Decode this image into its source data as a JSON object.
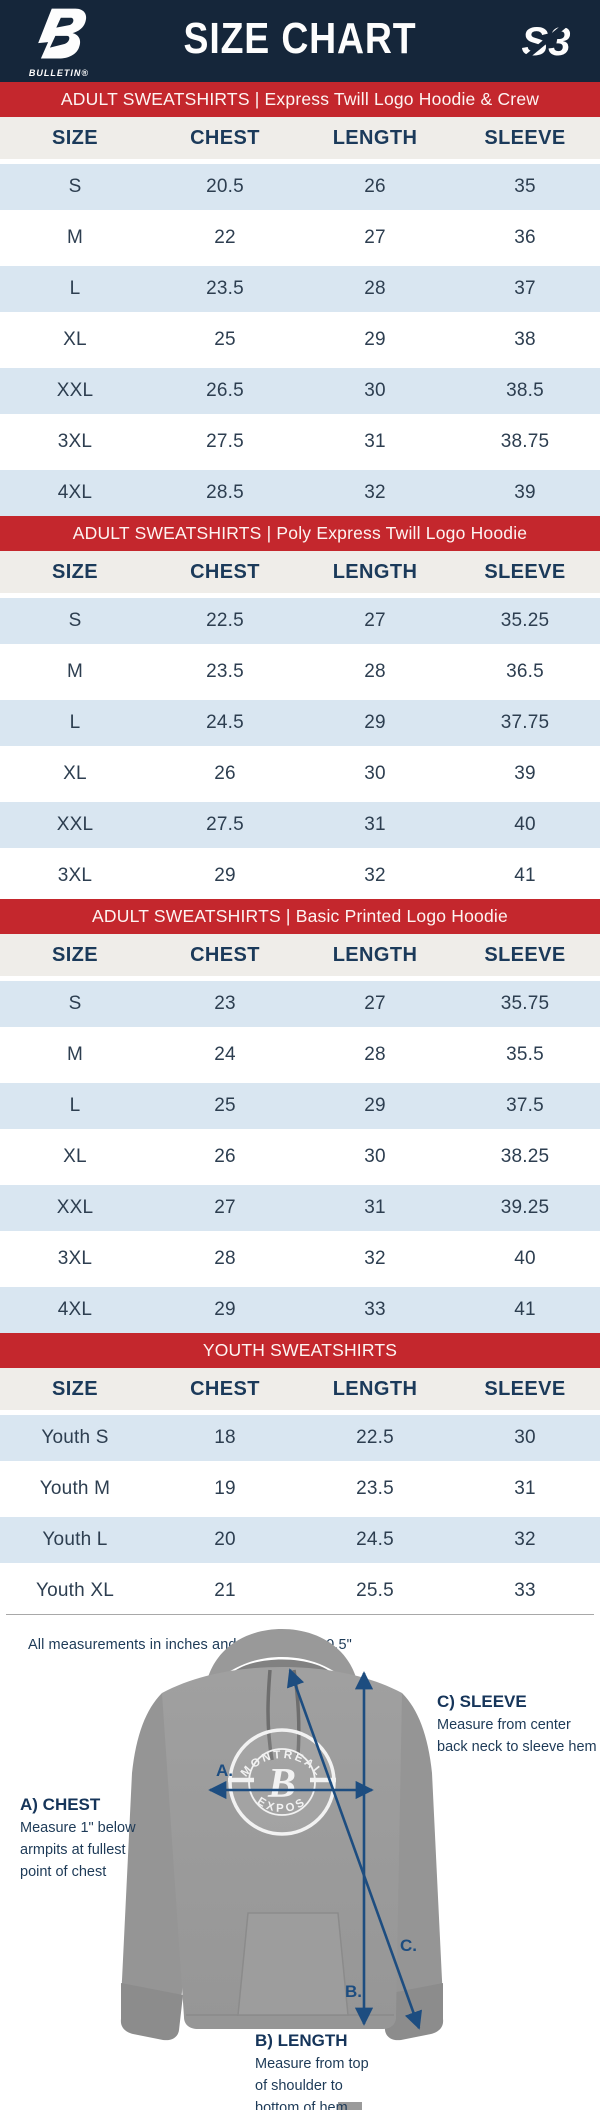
{
  "header": {
    "title": "SIZE CHART",
    "left_logo_text": "BULLETIN®",
    "right_logo_text": "S3"
  },
  "columns": [
    "SIZE",
    "CHEST",
    "LENGTH",
    "SLEEVE"
  ],
  "chart_data": [
    {
      "type": "table",
      "title": "ADULT SWEATSHIRTS | Express Twill Logo Hoodie & Crew",
      "columns": [
        "SIZE",
        "CHEST",
        "LENGTH",
        "SLEEVE"
      ],
      "rows": [
        [
          "S",
          "20.5",
          "26",
          "35"
        ],
        [
          "M",
          "22",
          "27",
          "36"
        ],
        [
          "L",
          "23.5",
          "28",
          "37"
        ],
        [
          "XL",
          "25",
          "29",
          "38"
        ],
        [
          "XXL",
          "26.5",
          "30",
          "38.5"
        ],
        [
          "3XL",
          "27.5",
          "31",
          "38.75"
        ],
        [
          "4XL",
          "28.5",
          "32",
          "39"
        ]
      ]
    },
    {
      "type": "table",
      "title": "ADULT SWEATSHIRTS | Poly Express Twill Logo Hoodie",
      "columns": [
        "SIZE",
        "CHEST",
        "LENGTH",
        "SLEEVE"
      ],
      "rows": [
        [
          "S",
          "22.5",
          "27",
          "35.25"
        ],
        [
          "M",
          "23.5",
          "28",
          "36.5"
        ],
        [
          "L",
          "24.5",
          "29",
          "37.75"
        ],
        [
          "XL",
          "26",
          "30",
          "39"
        ],
        [
          "XXL",
          "27.5",
          "31",
          "40"
        ],
        [
          "3XL",
          "29",
          "32",
          "41"
        ]
      ]
    },
    {
      "type": "table",
      "title": "ADULT SWEATSHIRTS | Basic Printed Logo Hoodie",
      "columns": [
        "SIZE",
        "CHEST",
        "LENGTH",
        "SLEEVE"
      ],
      "rows": [
        [
          "S",
          "23",
          "27",
          "35.75"
        ],
        [
          "M",
          "24",
          "28",
          "35.5"
        ],
        [
          "L",
          "25",
          "29",
          "37.5"
        ],
        [
          "XL",
          "26",
          "30",
          "38.25"
        ],
        [
          "XXL",
          "27",
          "31",
          "39.25"
        ],
        [
          "3XL",
          "28",
          "32",
          "40"
        ],
        [
          "4XL",
          "29",
          "33",
          "41"
        ]
      ]
    },
    {
      "type": "table",
      "title": "YOUTH SWEATSHIRTS",
      "columns": [
        "SIZE",
        "CHEST",
        "LENGTH",
        "SLEEVE"
      ],
      "rows": [
        [
          "Youth S",
          "18",
          "22.5",
          "30"
        ],
        [
          "Youth M",
          "19",
          "23.5",
          "31"
        ],
        [
          "Youth L",
          "20",
          "24.5",
          "32"
        ],
        [
          "Youth XL",
          "21",
          "25.5",
          "33"
        ]
      ]
    }
  ],
  "note": "All measurements in inches and may vary +/- 0.5\"",
  "diagram": {
    "logo": {
      "top": "MONTREAL",
      "bottom": "EXPOS",
      "monogram": "B"
    },
    "labels": {
      "a": "A.",
      "b": "B.",
      "c": "C."
    },
    "annotations": {
      "chest": {
        "title": "A) CHEST",
        "line1": "Measure 1\" below",
        "line2": "armpits at fullest",
        "line3": "point of chest"
      },
      "length": {
        "title": "B) LENGTH",
        "line1": "Measure from top",
        "line2": "of shoulder to",
        "line3": "bottom of hem"
      },
      "sleeve": {
        "title": "C) SLEEVE",
        "line1": "Measure from center",
        "line2": "back neck to sleeve hem"
      }
    }
  },
  "colors": {
    "navy": "#15263a",
    "red": "#c4272d",
    "row_blue": "#d9e6f1",
    "header_row_bg": "#efede9",
    "arrow_blue": "#1d4d80",
    "text_navy": "#1d3a57"
  }
}
